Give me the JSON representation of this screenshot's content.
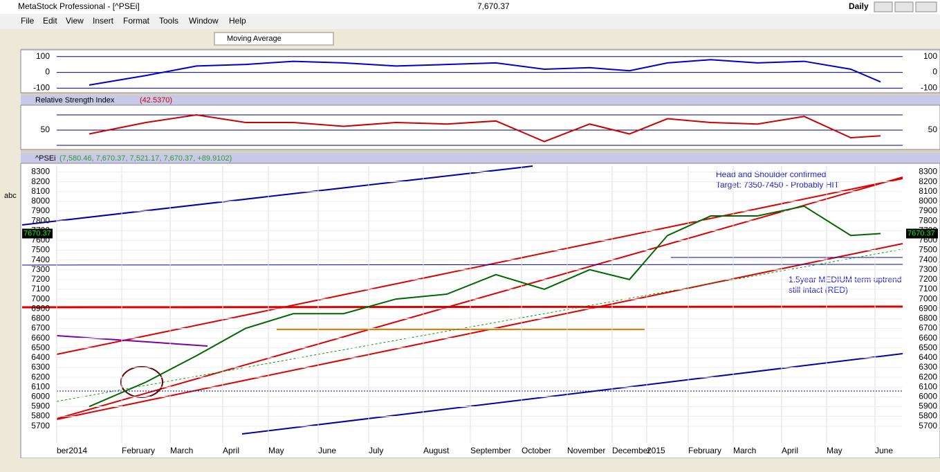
{
  "window": {
    "title": "MetaStock Professional - [^PSEi]",
    "last": "7,670.37",
    "period": "Daily"
  },
  "menu": [
    "File",
    "Edit",
    "View",
    "Insert",
    "Format",
    "Tools",
    "Window",
    "Help"
  ],
  "toolbar": {
    "indicator": "Moving Average"
  },
  "left_tools": {
    "text_tool": "abc"
  },
  "chart_data": [
    {
      "type": "line",
      "color": "#0000cc",
      "values": [
        -80,
        -20,
        40,
        50,
        70,
        60,
        40,
        50,
        60,
        20,
        30,
        10,
        60,
        80,
        60,
        70,
        20,
        -60
      ],
      "ylim": [
        -120,
        125
      ],
      "yticks": [
        100,
        0,
        -100
      ]
    },
    {
      "type": "line",
      "title": "Relative Strength Index",
      "legend": "(42.5370)",
      "color": "#cc0000",
      "values": [
        45,
        60,
        70,
        60,
        60,
        55,
        60,
        58,
        62,
        35,
        58,
        45,
        65,
        60,
        58,
        68,
        40,
        42.5
      ],
      "ylim": [
        25.5,
        80
      ],
      "yticks": [
        50
      ],
      "bands": [
        30,
        70
      ]
    },
    {
      "type": "line",
      "title": "^PSEi",
      "legend": "(7,580.46, 7,670.37, 7,521.17, 7,670.37, +89.9102)",
      "color": "#006600",
      "categories": [
        "ber2014",
        "February",
        "March",
        "April",
        "May",
        "June",
        "July",
        "August",
        "September",
        "October",
        "November",
        "December",
        "2015",
        "February",
        "March",
        "April",
        "May",
        "June"
      ],
      "values": [
        5900,
        6150,
        6420,
        6700,
        6850,
        6850,
        7000,
        7050,
        7250,
        7100,
        7300,
        7200,
        7650,
        7850,
        7850,
        7950,
        7650,
        7670
      ],
      "ylim": [
        5620,
        8360
      ],
      "yticks": [
        5700,
        5800,
        5900,
        6000,
        6100,
        6200,
        6300,
        6400,
        6500,
        6600,
        6700,
        6800,
        6900,
        7000,
        7100,
        7200,
        7300,
        7400,
        7500,
        7600,
        7700,
        7800,
        7900,
        8000,
        8100,
        8200,
        8300
      ],
      "last_label": "7670.37",
      "annotations": [
        "Head and Shoulder confirmed",
        "Target: 7350-7450 - Probably HIT",
        "1.5year MEDIUM term uptrend",
        "still intact (RED)"
      ]
    }
  ]
}
